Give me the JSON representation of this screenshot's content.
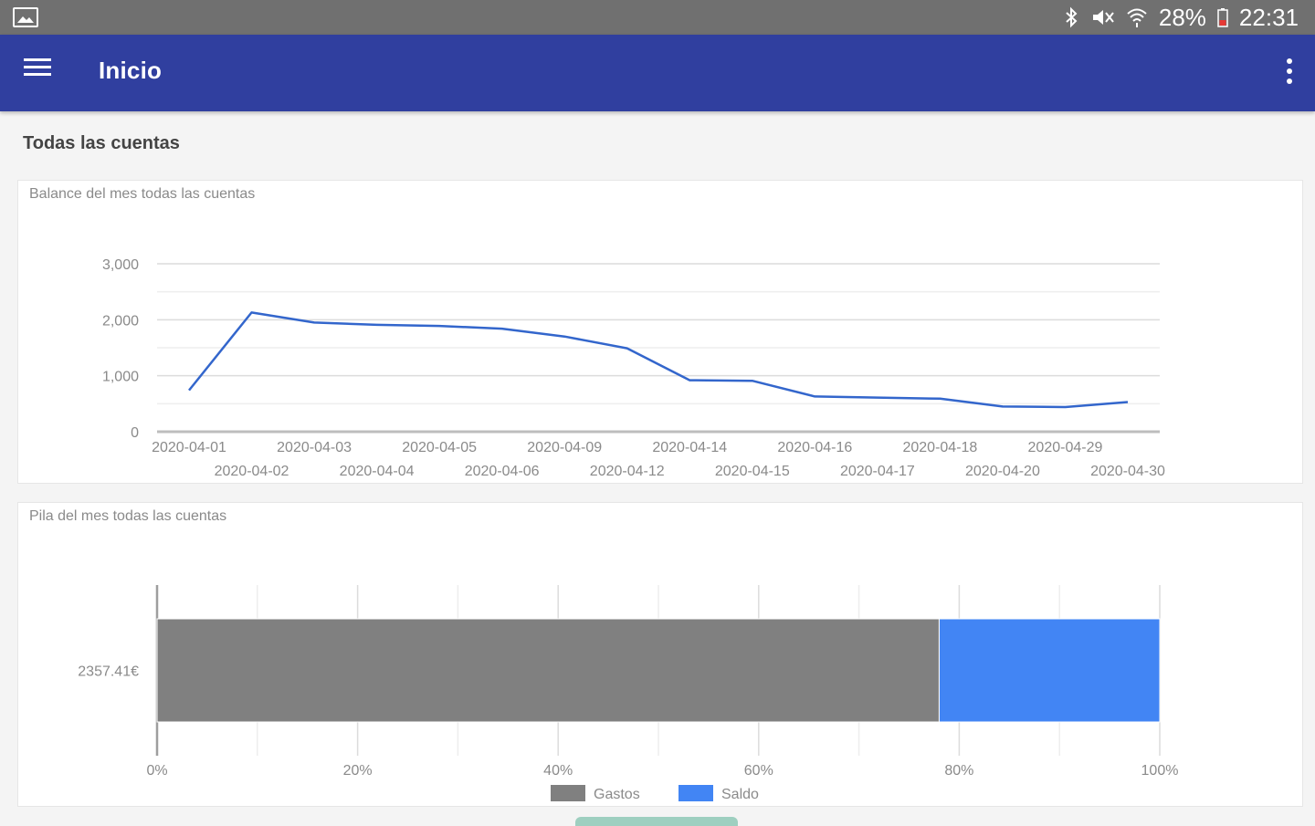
{
  "status_bar": {
    "left_icon": "gallery-icon",
    "icons": [
      "bluetooth-icon",
      "mute-icon",
      "wifi-icon"
    ],
    "battery": "28%",
    "time": "22:31"
  },
  "app_bar": {
    "menu_icon": "hamburger-menu-icon",
    "title": "Inicio",
    "overflow_icon": "more-vert-icon",
    "color": "#303f9f"
  },
  "section_title": "Todas las cuentas",
  "balance_chart": {
    "title": "Balance del mes todas las cuentas",
    "chart_data": {
      "type": "line",
      "title": "Balance del mes todas las cuentas",
      "x": [
        "2020-04-01",
        "2020-04-02",
        "2020-04-03",
        "2020-04-04",
        "2020-04-05",
        "2020-04-06",
        "2020-04-09",
        "2020-04-12",
        "2020-04-14",
        "2020-04-15",
        "2020-04-16",
        "2020-04-17",
        "2020-04-18",
        "2020-04-20",
        "2020-04-29",
        "2020-04-30"
      ],
      "series": [
        {
          "values": [
            740,
            2130,
            1950,
            1910,
            1890,
            1840,
            1700,
            1490,
            920,
            910,
            630,
            610,
            590,
            450,
            440,
            530
          ],
          "color": "#3366cc"
        }
      ],
      "yticks": [
        "0",
        "1,000",
        "2,000",
        "3,000"
      ],
      "ylim": [
        0,
        3000
      ],
      "grid": true
    }
  },
  "stack_chart": {
    "title": "Pila del mes todas las cuentas",
    "chart_data": {
      "type": "bar",
      "orientation": "horizontal",
      "stacked": "percent",
      "categories": [
        "2357.41€"
      ],
      "series": [
        {
          "name": "Gastos",
          "values": [
            78
          ],
          "color": "#808080"
        },
        {
          "name": "Saldo",
          "values": [
            22
          ],
          "color": "#4285f4"
        }
      ],
      "xticks": [
        "0%",
        "20%",
        "40%",
        "60%",
        "80%",
        "100%"
      ],
      "xlim": [
        0,
        100
      ],
      "legend": "bottom",
      "grid": true
    }
  }
}
